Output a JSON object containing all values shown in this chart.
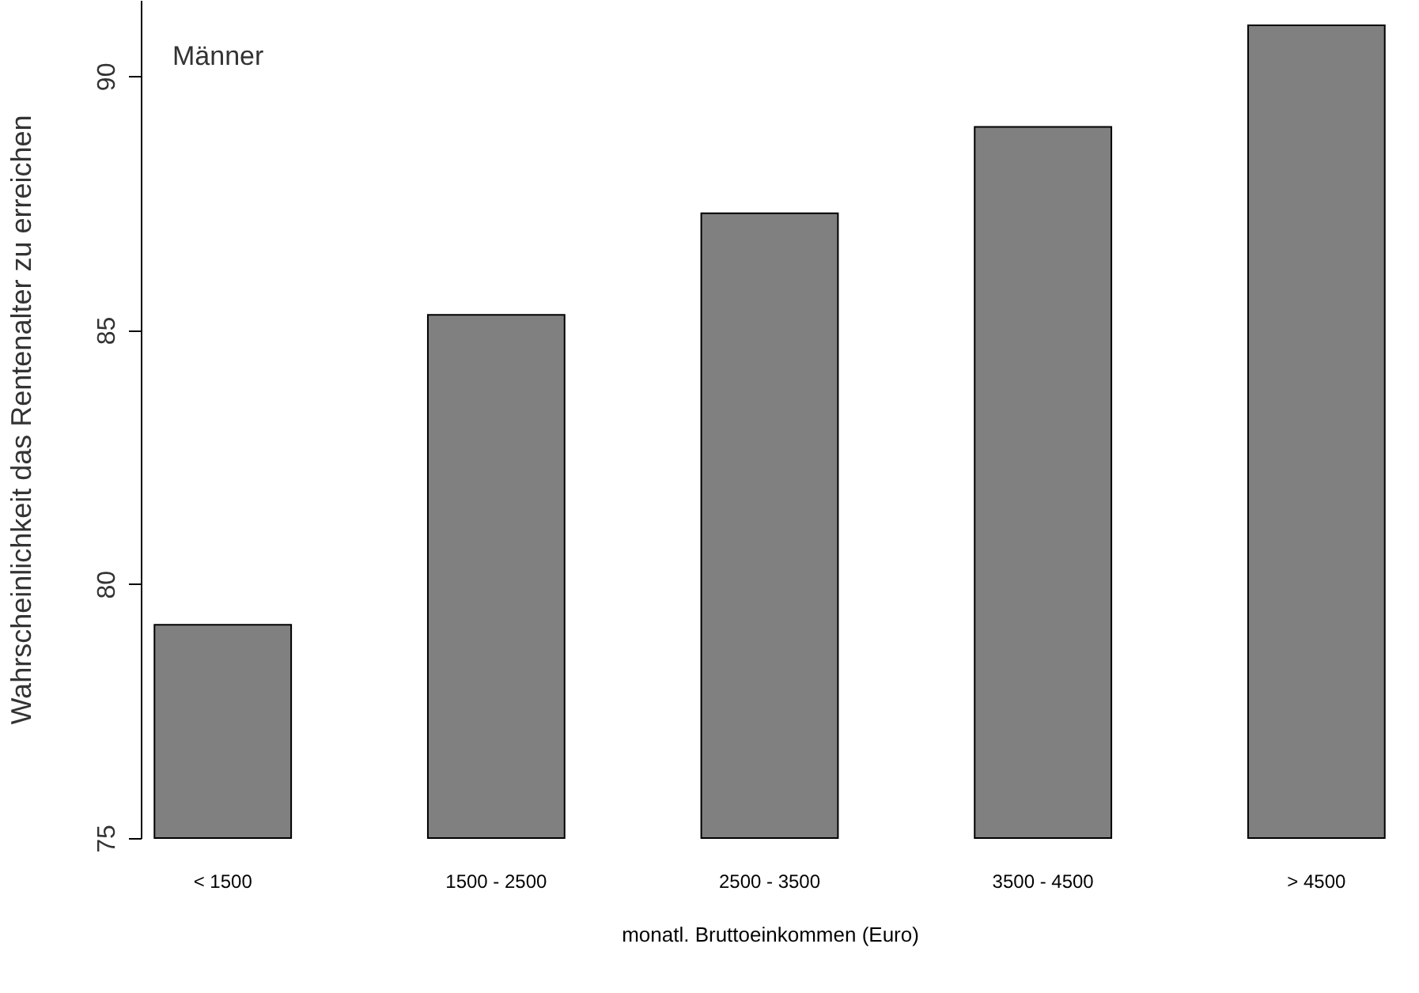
{
  "chart_data": {
    "type": "bar",
    "xlabel": "monatl. Bruttoeinkommen (Euro)",
    "ylabel": "Wahrscheinlichkeit das Rentenalter zu erreichen",
    "categories": [
      "< 1500",
      "1500 - 2500",
      "2500 - 3500",
      "3500 - 4500",
      "> 4500"
    ],
    "values": [
      79.2,
      85.3,
      87.3,
      89.0,
      91.0
    ],
    "color": "#808080",
    "ylim": [
      75,
      91.5
    ],
    "yticks": [
      75,
      80,
      85,
      90
    ],
    "grid": false,
    "annotations": [
      "Männer"
    ]
  }
}
